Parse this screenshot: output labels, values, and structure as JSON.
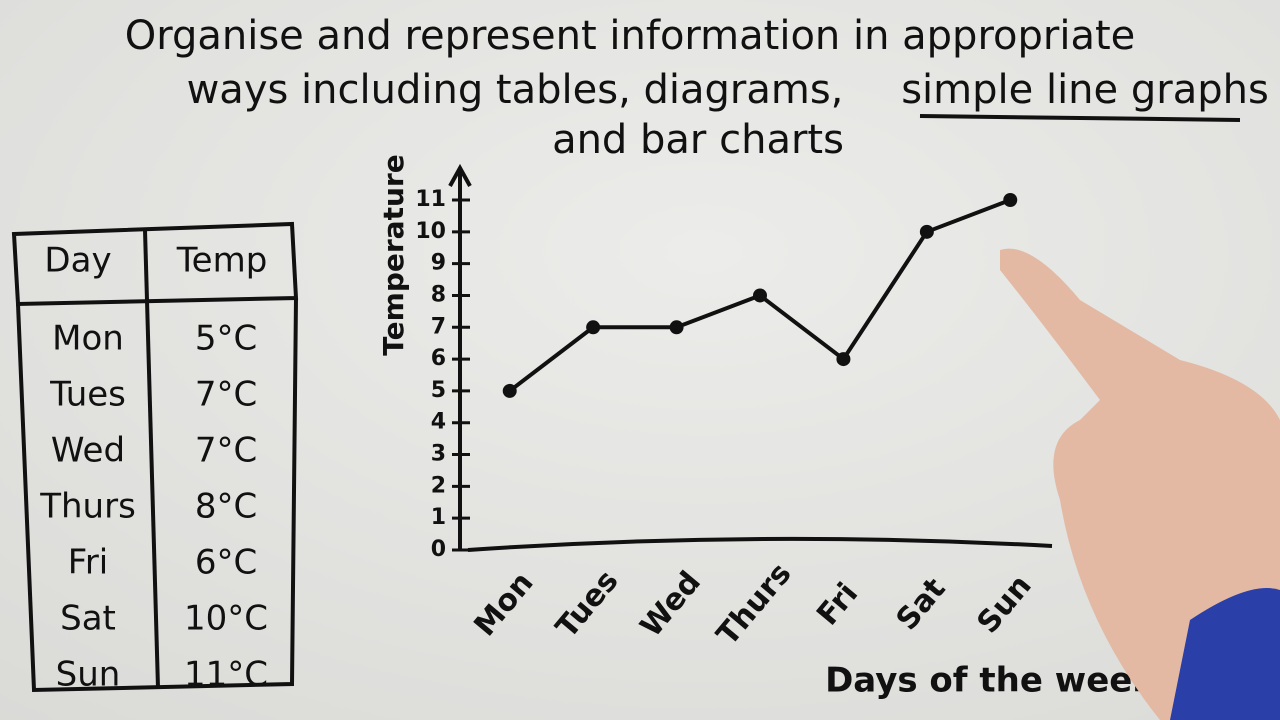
{
  "header": {
    "line1": "Organise and represent information in appropriate",
    "line2": "ways including tables, diagrams,",
    "underlined": "simple line graphs",
    "line3": "and bar charts"
  },
  "table": {
    "columns": [
      "Day",
      "Temp"
    ],
    "rows": [
      [
        "Mon",
        "5°C"
      ],
      [
        "Tues",
        "7°C"
      ],
      [
        "Wed",
        "7°C"
      ],
      [
        "Thurs",
        "8°C"
      ],
      [
        "Fri",
        "6°C"
      ],
      [
        "Sat",
        "10°C"
      ],
      [
        "Sun",
        "11°C"
      ]
    ]
  },
  "chart_data": {
    "type": "line",
    "y_label": "Temperature",
    "x_label": "Days of the week",
    "categories": [
      "Mon",
      "Tues",
      "Wed",
      "Thurs",
      "Fri",
      "Sat",
      "Sun"
    ],
    "values": [
      5,
      7,
      7,
      8,
      6,
      10,
      11
    ],
    "color": "#111111",
    "ylim": [
      0,
      11
    ],
    "yticks": [
      0,
      1,
      2,
      3,
      4,
      5,
      6,
      7,
      8,
      9,
      10,
      11
    ]
  }
}
